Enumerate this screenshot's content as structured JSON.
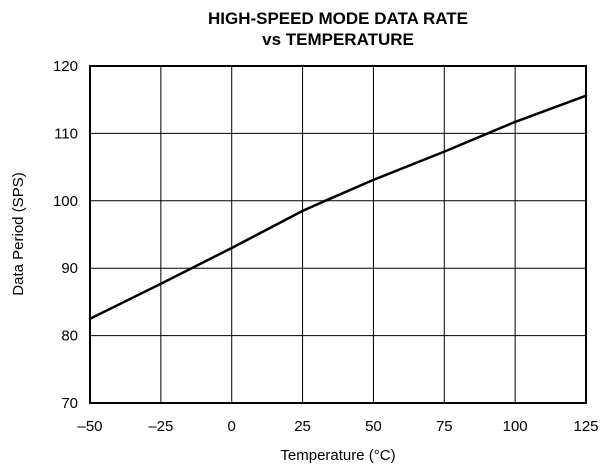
{
  "chart_data": {
    "type": "line",
    "title_lines": [
      "HIGH-SPEED MODE DATA RATE",
      "vs TEMPERATURE"
    ],
    "xlabel": "Temperature (°C)",
    "ylabel": "Data Period (SPS)",
    "xlim": [
      -50,
      125
    ],
    "ylim": [
      70,
      120
    ],
    "x_ticks": [
      -50,
      -25,
      0,
      25,
      50,
      75,
      100,
      125
    ],
    "y_ticks": [
      70,
      80,
      90,
      100,
      110,
      120
    ],
    "x_tick_labels": [
      "–50",
      "–25",
      "0",
      "25",
      "50",
      "75",
      "100",
      "125"
    ],
    "y_tick_labels": [
      "70",
      "80",
      "90",
      "100",
      "110",
      "120"
    ],
    "grid": true,
    "series": [
      {
        "x": [
          -50,
          -25,
          0,
          25,
          33,
          50,
          75,
          100,
          125
        ],
        "y": [
          82.5,
          87.7,
          93.0,
          98.5,
          100.0,
          103.1,
          107.3,
          111.7,
          115.6
        ]
      }
    ],
    "colors": {
      "line": "#000000",
      "grid": "#000000",
      "frame": "#000000"
    }
  }
}
